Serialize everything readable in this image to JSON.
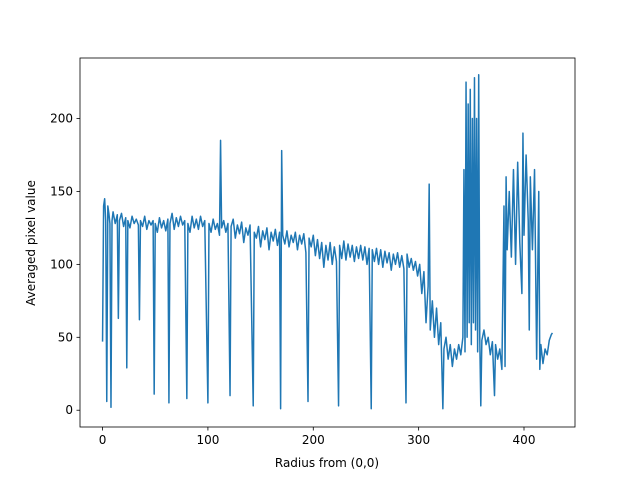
{
  "chart_data": {
    "type": "line",
    "xlabel": "Radius from (0,0)",
    "ylabel": "Averaged pixel value",
    "xlim": [
      -21.4,
      448.4
    ],
    "ylim": [
      -11.5,
      241.5
    ],
    "xticks": [
      0,
      100,
      200,
      300,
      400
    ],
    "yticks": [
      0,
      50,
      100,
      150,
      200
    ],
    "grid": false,
    "series": [
      {
        "color": "#1f77b4",
        "x": [
          0,
          1,
          2,
          3,
          4,
          5,
          6,
          7,
          8,
          9,
          10,
          12,
          14,
          15,
          16,
          18,
          20,
          22,
          23,
          24,
          26,
          28,
          30,
          32,
          34,
          35,
          36,
          38,
          40,
          42,
          44,
          46,
          48,
          49,
          50,
          52,
          54,
          56,
          58,
          60,
          62,
          63,
          64,
          66,
          68,
          70,
          72,
          74,
          76,
          78,
          80,
          81,
          83,
          85,
          87,
          89,
          91,
          93,
          95,
          97,
          100,
          101,
          103,
          105,
          107,
          109,
          111,
          112,
          113,
          115,
          117,
          119,
          121,
          122,
          124,
          126,
          128,
          130,
          132,
          134,
          136,
          138,
          140,
          143,
          144,
          146,
          148,
          150,
          152,
          154,
          156,
          158,
          160,
          162,
          164,
          166,
          168,
          169,
          170,
          171,
          173,
          175,
          177,
          179,
          181,
          183,
          185,
          187,
          189,
          191,
          193,
          195,
          196,
          198,
          200,
          202,
          204,
          206,
          208,
          210,
          212,
          214,
          216,
          218,
          220,
          222,
          224,
          225,
          227,
          229,
          231,
          233,
          235,
          237,
          239,
          241,
          243,
          245,
          247,
          249,
          251,
          253,
          255,
          256,
          258,
          260,
          262,
          264,
          266,
          268,
          270,
          272,
          274,
          276,
          278,
          280,
          282,
          284,
          286,
          288,
          289,
          291,
          293,
          295,
          297,
          299,
          301,
          303,
          305,
          307,
          309,
          310,
          311,
          313,
          315,
          317,
          319,
          321,
          323,
          324,
          326,
          328,
          330,
          332,
          334,
          336,
          338,
          340,
          342,
          343,
          344,
          345,
          346,
          347,
          348,
          349,
          350,
          351,
          352,
          353,
          354,
          355,
          356,
          357,
          358,
          359,
          360,
          362,
          364,
          366,
          368,
          370,
          372,
          373,
          375,
          377,
          379,
          381,
          382,
          383,
          384,
          386,
          388,
          390,
          392,
          394,
          396,
          398,
          399,
          400,
          402,
          404,
          405,
          406,
          408,
          410,
          412,
          414,
          415,
          416,
          418,
          420,
          422,
          424,
          426,
          427
        ],
        "values": [
          47,
          140,
          145,
          130,
          6,
          140,
          135,
          128,
          2,
          130,
          136,
          128,
          134,
          63,
          130,
          135,
          126,
          132,
          29,
          130,
          125,
          133,
          128,
          131,
          127,
          62,
          130,
          126,
          133,
          124,
          130,
          127,
          130,
          11,
          128,
          122,
          132,
          125,
          130,
          123,
          131,
          5,
          128,
          135,
          124,
          132,
          126,
          133,
          127,
          130,
          8,
          128,
          122,
          133,
          125,
          131,
          124,
          133,
          126,
          130,
          5,
          128,
          122,
          131,
          124,
          128,
          120,
          185,
          125,
          130,
          122,
          128,
          10,
          126,
          131,
          118,
          127,
          121,
          129,
          115,
          125,
          120,
          127,
          3,
          122,
          118,
          126,
          112,
          123,
          117,
          125,
          110,
          122,
          116,
          124,
          113,
          122,
          1,
          178,
          120,
          114,
          123,
          112,
          120,
          115,
          122,
          110,
          120,
          114,
          121,
          108,
          6,
          118,
          112,
          120,
          106,
          117,
          104,
          115,
          98,
          113,
          103,
          115,
          100,
          112,
          102,
          3,
          113,
          104,
          116,
          103,
          114,
          105,
          113,
          102,
          112,
          104,
          113,
          103,
          112,
          100,
          111,
          1,
          110,
          102,
          111,
          100,
          110,
          98,
          109,
          101,
          108,
          96,
          107,
          100,
          108,
          98,
          106,
          97,
          5,
          107,
          98,
          104,
          96,
          102,
          92,
          100,
          80,
          95,
          60,
          85,
          155,
          55,
          75,
          50,
          70,
          45,
          60,
          1,
          42,
          50,
          35,
          45,
          30,
          42,
          35,
          45,
          38,
          50,
          165,
          40,
          225,
          50,
          210,
          60,
          220,
          45,
          200,
          60,
          228,
          55,
          200,
          40,
          230,
          50,
          3,
          48,
          55,
          45,
          50,
          38,
          47,
          10,
          45,
          35,
          42,
          28,
          140,
          30,
          160,
          110,
          150,
          105,
          165,
          100,
          170,
          115,
          80,
          190,
          120,
          175,
          130,
          55,
          160,
          110,
          165,
          35,
          150,
          28,
          45,
          32,
          42,
          38,
          48,
          52,
          53
        ]
      }
    ]
  }
}
